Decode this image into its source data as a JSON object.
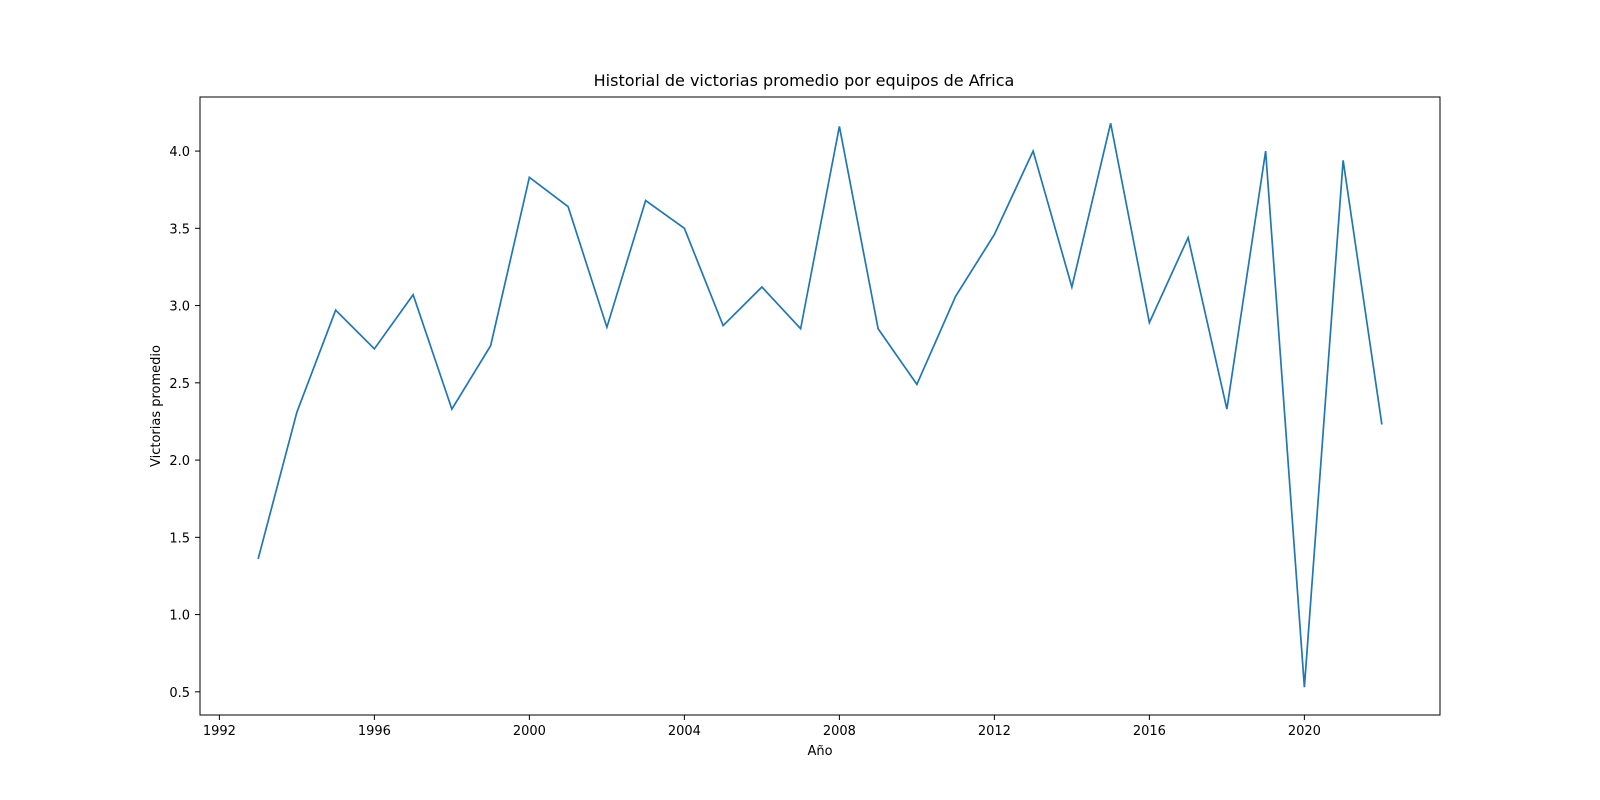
{
  "chart_data": {
    "type": "line",
    "title": "Historial de victorias promedio por equipos de Africa",
    "xlabel": "Año",
    "ylabel": "Victorias promedio",
    "xlim": [
      1991.5,
      2023.5
    ],
    "ylim": [
      0.35,
      4.35
    ],
    "grid": false,
    "x_ticks": [
      1992,
      1996,
      2000,
      2004,
      2008,
      2012,
      2016,
      2020
    ],
    "y_ticks": [
      0.5,
      1.0,
      1.5,
      2.0,
      2.5,
      3.0,
      3.5,
      4.0
    ],
    "x_tick_labels": [
      "1992",
      "1996",
      "2000",
      "2004",
      "2008",
      "2012",
      "2016",
      "2020"
    ],
    "y_tick_labels": [
      "0.5",
      "1.0",
      "1.5",
      "2.0",
      "2.5",
      "3.0",
      "3.5",
      "4.0"
    ],
    "series": [
      {
        "color": "#1f77b4",
        "x": [
          1993,
          1994,
          1995,
          1996,
          1997,
          1998,
          1999,
          2000,
          2001,
          2002,
          2003,
          2004,
          2005,
          2006,
          2007,
          2008,
          2009,
          2010,
          2011,
          2012,
          2013,
          2014,
          2015,
          2016,
          2017,
          2018,
          2019,
          2020,
          2021,
          2022
        ],
        "values": [
          1.36,
          2.31,
          2.97,
          2.72,
          3.07,
          2.33,
          2.74,
          3.83,
          3.64,
          2.86,
          3.68,
          3.5,
          2.87,
          3.12,
          2.85,
          4.16,
          2.85,
          2.49,
          3.06,
          3.46,
          4.0,
          3.12,
          4.18,
          2.89,
          3.44,
          2.33,
          4.0,
          0.53,
          3.94,
          2.23
        ]
      }
    ]
  }
}
